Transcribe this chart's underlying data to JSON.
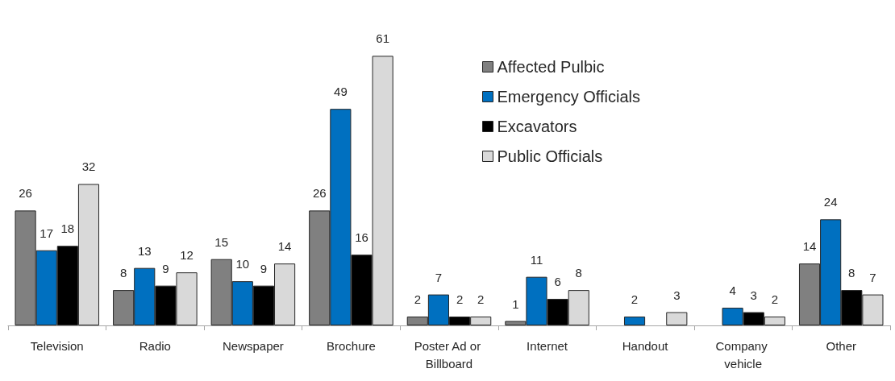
{
  "chart_data": {
    "type": "bar",
    "categories": [
      "Television",
      "Radio",
      "Newspaper",
      "Brochure",
      "Poster Ad or Billboard",
      "Internet",
      "Handout",
      "Company vehicle",
      "Other"
    ],
    "series": [
      {
        "name": "Affected Pulbic",
        "color": "#808080",
        "values": [
          26,
          8,
          15,
          26,
          2,
          1,
          null,
          null,
          14
        ]
      },
      {
        "name": "Emergency Officials",
        "color": "#0070c0",
        "values": [
          17,
          13,
          10,
          49,
          7,
          11,
          2,
          4,
          24
        ]
      },
      {
        "name": "Excavators",
        "color": "#000000",
        "values": [
          18,
          9,
          9,
          16,
          2,
          6,
          null,
          3,
          8
        ]
      },
      {
        "name": "Public Officials",
        "color": "#d9d9d9",
        "values": [
          32,
          12,
          14,
          61,
          2,
          8,
          3,
          2,
          7
        ]
      }
    ],
    "data_labels": true,
    "legend": "top right"
  }
}
